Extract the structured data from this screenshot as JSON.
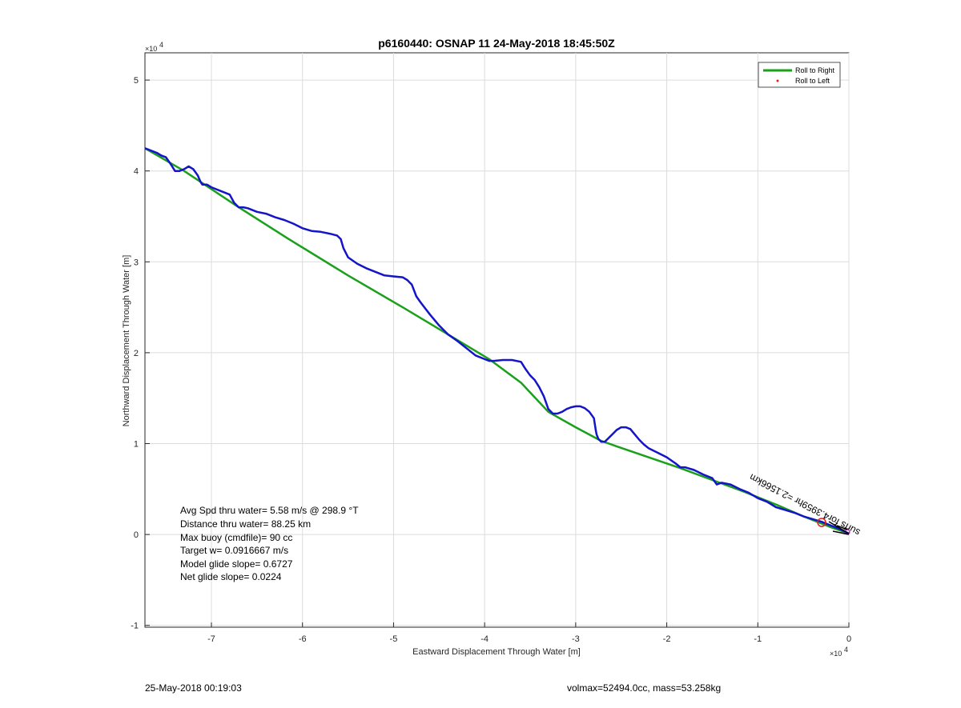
{
  "chart_data": {
    "type": "line",
    "title": "p6160440: OSNAP 11 24-May-2018 18:45:50Z",
    "xlabel": "Eastward Displacement Through Water [m]",
    "ylabel": "Northward Displacement Through Water [m]",
    "x_exponent": "×10",
    "x_exponent_power": "4",
    "y_exponent": "×10",
    "y_exponent_power": "4",
    "xlim": [
      -7.73,
      0
    ],
    "ylim": [
      -1.02,
      5.3
    ],
    "xticks": [
      -7,
      -6,
      -5,
      -4,
      -3,
      -2,
      -1,
      0
    ],
    "xtick_labels": [
      "-7",
      "-6",
      "-5",
      "-4",
      "-3",
      "-2",
      "-1",
      "0"
    ],
    "yticks": [
      -1,
      0,
      1,
      2,
      3,
      4,
      5
    ],
    "ytick_labels": [
      "-1",
      "0",
      "1",
      "2",
      "3",
      "4",
      "5"
    ],
    "grid": true,
    "legend_position": "top-right",
    "series": [
      {
        "name": "Roll to Right",
        "color": "#1aa01a",
        "x": [
          -7.73,
          -7.3,
          -6.7,
          -6.15,
          -5.5,
          -4.9,
          -4.4,
          -3.95,
          -3.6,
          -3.3,
          -3.0,
          -2.72,
          -2.55,
          -2.2,
          -1.85,
          -1.5,
          -1.15,
          -0.8,
          -0.5,
          -0.2,
          0
        ],
        "y": [
          4.25,
          4.0,
          3.6,
          3.25,
          2.85,
          2.5,
          2.2,
          1.93,
          1.67,
          1.35,
          1.18,
          1.03,
          0.97,
          0.85,
          0.73,
          0.6,
          0.47,
          0.33,
          0.2,
          0.08,
          0.01
        ]
      },
      {
        "name": "Roll to Left",
        "color": "#e81a1a",
        "x": [],
        "y": []
      },
      {
        "name": "",
        "color": "#1414c8",
        "x": [
          -7.73,
          -7.6,
          -7.55,
          -7.5,
          -7.45,
          -7.4,
          -7.35,
          -7.3,
          -7.25,
          -7.2,
          -7.15,
          -7.12,
          -7.1,
          -7.05,
          -7.0,
          -6.9,
          -6.8,
          -6.75,
          -6.7,
          -6.65,
          -6.6,
          -6.5,
          -6.4,
          -6.3,
          -6.2,
          -6.1,
          -6.0,
          -5.9,
          -5.8,
          -5.7,
          -5.62,
          -5.58,
          -5.55,
          -5.5,
          -5.4,
          -5.3,
          -5.2,
          -5.1,
          -5.0,
          -4.9,
          -4.85,
          -4.8,
          -4.75,
          -4.7,
          -4.6,
          -4.5,
          -4.4,
          -4.3,
          -4.2,
          -4.1,
          -4.0,
          -3.95,
          -3.9,
          -3.8,
          -3.7,
          -3.6,
          -3.55,
          -3.5,
          -3.45,
          -3.4,
          -3.35,
          -3.3,
          -3.25,
          -3.2,
          -3.15,
          -3.1,
          -3.05,
          -3.0,
          -2.95,
          -2.9,
          -2.85,
          -2.8,
          -2.78,
          -2.77,
          -2.75,
          -2.72,
          -2.68,
          -2.65,
          -2.6,
          -2.55,
          -2.5,
          -2.45,
          -2.4,
          -2.35,
          -2.3,
          -2.25,
          -2.2,
          -2.1,
          -2.0,
          -1.9,
          -1.85,
          -1.8,
          -1.7,
          -1.6,
          -1.5,
          -1.45,
          -1.4,
          -1.3,
          -1.2,
          -1.1,
          -1.0,
          -0.9,
          -0.8,
          -0.7,
          -0.6,
          -0.5,
          -0.4,
          -0.3,
          -0.2,
          -0.1,
          0.0
        ],
        "y": [
          4.25,
          4.2,
          4.17,
          4.15,
          4.08,
          4.0,
          4.0,
          4.02,
          4.05,
          4.02,
          3.95,
          3.88,
          3.85,
          3.85,
          3.82,
          3.78,
          3.74,
          3.65,
          3.6,
          3.6,
          3.59,
          3.55,
          3.53,
          3.49,
          3.46,
          3.42,
          3.37,
          3.34,
          3.33,
          3.31,
          3.29,
          3.25,
          3.15,
          3.05,
          2.98,
          2.93,
          2.89,
          2.85,
          2.84,
          2.83,
          2.8,
          2.75,
          2.62,
          2.55,
          2.42,
          2.3,
          2.2,
          2.13,
          2.05,
          1.97,
          1.93,
          1.91,
          1.91,
          1.92,
          1.92,
          1.9,
          1.82,
          1.75,
          1.7,
          1.62,
          1.52,
          1.38,
          1.33,
          1.33,
          1.35,
          1.38,
          1.4,
          1.41,
          1.41,
          1.39,
          1.35,
          1.28,
          1.15,
          1.1,
          1.05,
          1.02,
          1.02,
          1.05,
          1.1,
          1.15,
          1.18,
          1.18,
          1.16,
          1.1,
          1.04,
          0.99,
          0.95,
          0.9,
          0.85,
          0.78,
          0.74,
          0.74,
          0.71,
          0.66,
          0.62,
          0.55,
          0.57,
          0.55,
          0.5,
          0.46,
          0.4,
          0.36,
          0.3,
          0.27,
          0.24,
          0.2,
          0.17,
          0.14,
          0.1,
          0.06,
          0.01
        ]
      }
    ],
    "annotations": {
      "rotated_text": "surfs for4.3959hr =2.1566km"
    }
  },
  "stats": {
    "line1": "Avg Spd thru water=  5.58 m/s @ 298.9 °T",
    "line2": "Distance thru water= 88.25 km",
    "line3": "Max buoy (cmdfile)= 90 cc",
    "line4": "Target w= 0.0916667 m/s",
    "line5": "Model glide slope= 0.6727",
    "line6": "Net glide slope= 0.0224"
  },
  "footer": {
    "timestamp": "25-May-2018 00:19:03",
    "info": "volmax=52494.0cc, mass=53.258kg"
  }
}
